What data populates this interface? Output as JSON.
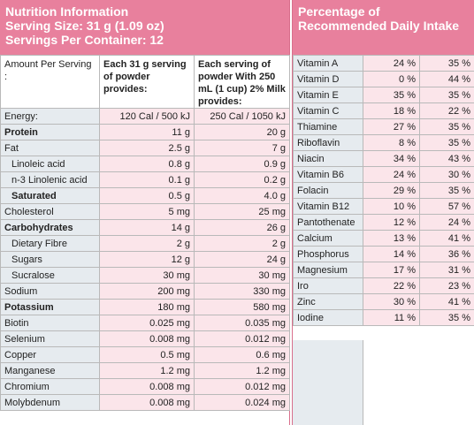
{
  "nutrition": {
    "header": {
      "title": "Nutrition Information",
      "serving_size": "Serving Size: 31 g (1.09 oz)",
      "servings": "Servings Per Container: 12"
    },
    "columns": [
      "Amount Per Serving :",
      "Each 31 g serving of powder provides:",
      "Each serving of powder With 250 mL (1 cup) 2% Milk provides:"
    ],
    "rows": [
      {
        "cells": [
          "Energy:",
          "120 Cal / 500 kJ",
          "250 Cal / 1050 kJ"
        ]
      },
      {
        "cells": [
          "Protein",
          "11 g",
          "20 g"
        ],
        "bold": true
      },
      {
        "cells": [
          "Fat",
          "2.5 g",
          "7 g"
        ]
      },
      {
        "cells": [
          "Linoleic acid",
          "0.8 g",
          "0.9 g"
        ],
        "indent": true
      },
      {
        "cells": [
          "n-3 Linolenic acid",
          "0.1 g",
          "0.2 g"
        ],
        "indent": true
      },
      {
        "cells": [
          "Saturated",
          "0.5 g",
          "4.0 g"
        ],
        "bold": true,
        "indent": true
      },
      {
        "cells": [
          "Cholesterol",
          "5 mg",
          "25 mg"
        ]
      },
      {
        "cells": [
          "Carbohydrates",
          "14 g",
          "26 g"
        ],
        "bold": true
      },
      {
        "cells": [
          "Dietary Fibre",
          "2 g",
          "2 g"
        ],
        "indent": true
      },
      {
        "cells": [
          "Sugars",
          "12 g",
          "24 g"
        ],
        "indent": true
      },
      {
        "cells": [
          "Sucralose",
          "30 mg",
          "30 mg"
        ],
        "indent": true
      },
      {
        "cells": [
          "Sodium",
          "200 mg",
          "330 mg"
        ]
      },
      {
        "cells": [
          "Potassium",
          "180 mg",
          "580 mg"
        ],
        "bold": true
      },
      {
        "cells": [
          "Biotin",
          "0.025 mg",
          "0.035 mg"
        ]
      },
      {
        "cells": [
          "Selenium",
          "0.008 mg",
          "0.012 mg"
        ]
      },
      {
        "cells": [
          "Copper",
          "0.5 mg",
          "0.6 mg"
        ]
      },
      {
        "cells": [
          "Manganese",
          "1.2 mg",
          "1.2 mg"
        ]
      },
      {
        "cells": [
          "Chromium",
          "0.008 mg",
          "0.012 mg"
        ]
      },
      {
        "cells": [
          "Molybdenum",
          "0.008 mg",
          "0.024 mg"
        ]
      }
    ]
  },
  "intake": {
    "title": "Percentage of Recommended Daily Intake",
    "rows": [
      [
        "Vitamin A",
        "24 %",
        "35 %"
      ],
      [
        "Vitamin D",
        "0 %",
        "44 %"
      ],
      [
        "Vitamin E",
        "35 %",
        "35 %"
      ],
      [
        "Vitamin C",
        "18 %",
        "22 %"
      ],
      [
        "Thiamine",
        "27 %",
        "35 %"
      ],
      [
        "Riboflavin",
        "8 %",
        "35 %"
      ],
      [
        "Niacin",
        "34 %",
        "43 %"
      ],
      [
        "Vitamin B6",
        "24 %",
        "30 %"
      ],
      [
        "Folacin",
        "29 %",
        "35 %"
      ],
      [
        "Vitamin B12",
        "10 %",
        "57 %"
      ],
      [
        "Pantothenate",
        "12 %",
        "24 %"
      ],
      [
        "Calcium",
        "13 %",
        "41 %"
      ],
      [
        "Phosphorus",
        "14 %",
        "36 %"
      ],
      [
        "Magnesium",
        "17 %",
        "31 %"
      ],
      [
        "Iro",
        "22 %",
        "23 %"
      ],
      [
        "Zinc",
        "30 %",
        "41 %"
      ],
      [
        "Iodine",
        "11 %",
        "35 %"
      ]
    ]
  }
}
